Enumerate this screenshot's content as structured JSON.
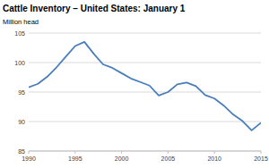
{
  "chart_data": {
    "type": "line",
    "title": "Cattle Inventory – United States: January 1",
    "subtitle": "Million head",
    "x": [
      1990,
      1991,
      1992,
      1993,
      1994,
      1995,
      1996,
      1997,
      1998,
      1999,
      2000,
      2001,
      2002,
      2003,
      2004,
      2005,
      2006,
      2007,
      2008,
      2009,
      2010,
      2011,
      2012,
      2013,
      2014,
      2015
    ],
    "values": [
      95.8,
      96.4,
      97.6,
      99.2,
      101.0,
      102.8,
      103.5,
      101.5,
      99.7,
      99.1,
      98.2,
      97.3,
      96.7,
      96.1,
      94.4,
      95.0,
      96.3,
      96.6,
      96.0,
      94.5,
      93.9,
      92.7,
      91.2,
      90.1,
      88.5,
      89.8
    ],
    "color": "#4a7ebb",
    "xlim": [
      1990,
      2015
    ],
    "xticks": [
      1990,
      1995,
      2000,
      2005,
      2010,
      2015
    ],
    "ylim": [
      85,
      105
    ],
    "yticks": [
      85,
      90,
      95,
      100,
      105
    ],
    "grid": true
  }
}
